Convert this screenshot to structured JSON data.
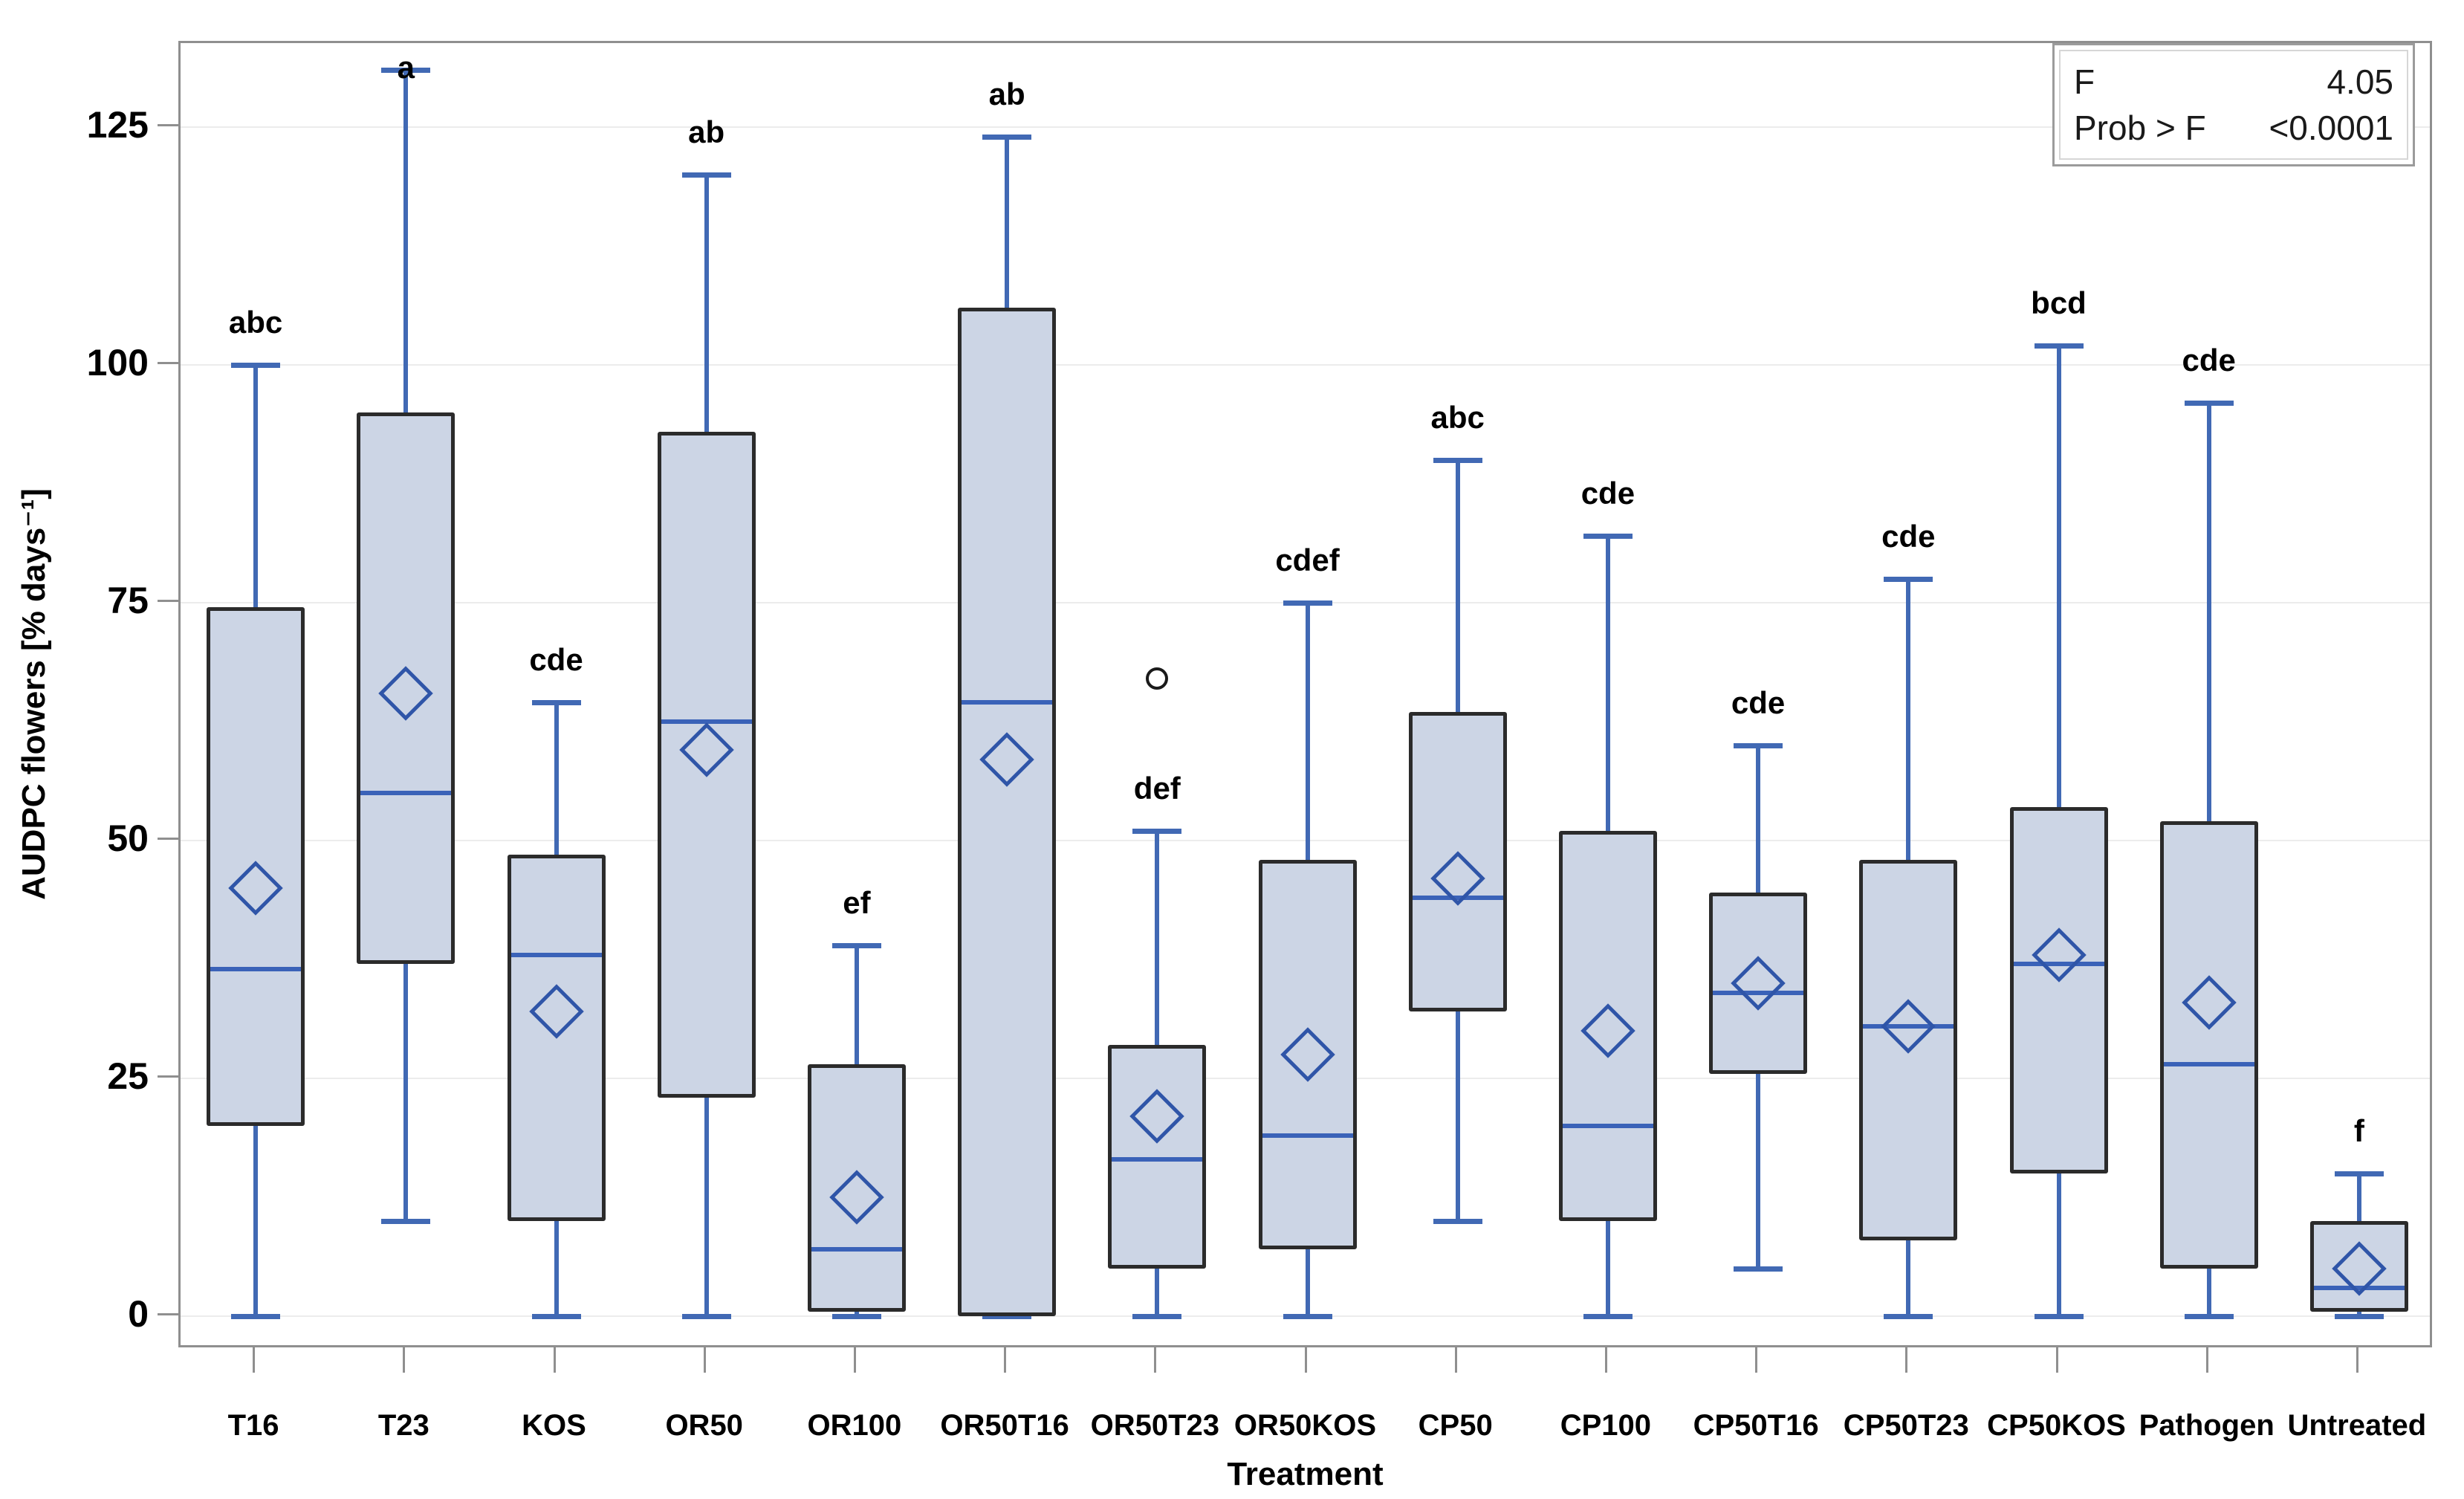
{
  "stats_box": {
    "f_label": "F",
    "f_value": "4.05",
    "prob_label": "Prob > F",
    "prob_value": "<0.0001"
  },
  "axes": {
    "x_title": "Treatment",
    "y_title": "AUDPC flowers [% days⁻¹]"
  },
  "colors": {
    "box_fill": "#ccd5e5",
    "box_border": "#2b2b2b",
    "whisker": "#4169b4",
    "median": "#3a62b8",
    "mean_diamond": "#2f55a8",
    "outlier": "#1a1a1a",
    "grid": "#ececec",
    "axis": "#8f8f8f",
    "background": "#ffffff"
  },
  "chart_data": {
    "type": "boxplot",
    "title": "",
    "xlabel": "Treatment",
    "ylabel": "AUDPC flowers [% days⁻¹]",
    "ylim": [
      -3.5,
      134
    ],
    "yticks": [
      0,
      25,
      50,
      75,
      100,
      125
    ],
    "grid": true,
    "legend": "none",
    "annotation_box": {
      "position": "top-right",
      "rows": [
        [
          "F",
          "4.05"
        ],
        [
          "Prob > F",
          "<0.0001"
        ]
      ]
    },
    "mean_marker": "open-diamond",
    "series": [
      {
        "label": "T16",
        "letter": "abc",
        "min": 0,
        "q1": 20,
        "median": 36.5,
        "mean": 45,
        "q3": 74.5,
        "max": 100,
        "outliers": []
      },
      {
        "label": "T23",
        "letter": "a",
        "min": 10,
        "q1": 37,
        "median": 55,
        "mean": 65.5,
        "q3": 95,
        "max": 131,
        "outliers": []
      },
      {
        "label": "KOS",
        "letter": "cde",
        "min": 0,
        "q1": 10,
        "median": 38,
        "mean": 32,
        "q3": 48.5,
        "max": 64.5,
        "outliers": []
      },
      {
        "label": "OR50",
        "letter": "ab",
        "min": 0,
        "q1": 23,
        "median": 62.5,
        "mean": 59.5,
        "q3": 93,
        "max": 120,
        "outliers": []
      },
      {
        "label": "OR100",
        "letter": "ef",
        "min": 0,
        "q1": 0.5,
        "median": 7,
        "mean": 12.5,
        "q3": 26.5,
        "max": 39,
        "outliers": []
      },
      {
        "label": "OR50T16",
        "letter": "ab",
        "min": 0,
        "q1": 0,
        "median": 64.5,
        "mean": 58.5,
        "q3": 106,
        "max": 124,
        "outliers": []
      },
      {
        "label": "OR50T23",
        "letter": "def",
        "min": 0,
        "q1": 5,
        "median": 16.5,
        "mean": 21,
        "q3": 28.5,
        "max": 51,
        "outliers": [
          67
        ]
      },
      {
        "label": "OR50KOS",
        "letter": "cdef",
        "min": 0,
        "q1": 7,
        "median": 19,
        "mean": 27.5,
        "q3": 48,
        "max": 75,
        "outliers": []
      },
      {
        "label": "CP50",
        "letter": "abc",
        "min": 10,
        "q1": 32,
        "median": 44,
        "mean": 46,
        "q3": 63.5,
        "max": 90,
        "outliers": []
      },
      {
        "label": "CP100",
        "letter": "cde",
        "min": 0,
        "q1": 10,
        "median": 20,
        "mean": 30,
        "q3": 51,
        "max": 82,
        "outliers": []
      },
      {
        "label": "CP50T16",
        "letter": "cde",
        "min": 5,
        "q1": 25.5,
        "median": 34,
        "mean": 35,
        "q3": 44.5,
        "max": 60,
        "outliers": []
      },
      {
        "label": "CP50T23",
        "letter": "cde",
        "min": 0,
        "q1": 8,
        "median": 30.5,
        "mean": 30.5,
        "q3": 48,
        "max": 77.5,
        "outliers": []
      },
      {
        "label": "CP50KOS",
        "letter": "bcd",
        "min": 0,
        "q1": 15,
        "median": 37,
        "mean": 38,
        "q3": 53.5,
        "max": 102,
        "outliers": []
      },
      {
        "label": "Pathogen",
        "letter": "cde",
        "min": 0,
        "q1": 5,
        "median": 26.5,
        "mean": 33,
        "q3": 52,
        "max": 96,
        "outliers": []
      },
      {
        "label": "Untreated",
        "letter": "f",
        "min": 0,
        "q1": 0.5,
        "median": 3,
        "mean": 5,
        "q3": 10,
        "max": 15,
        "outliers": []
      }
    ]
  }
}
